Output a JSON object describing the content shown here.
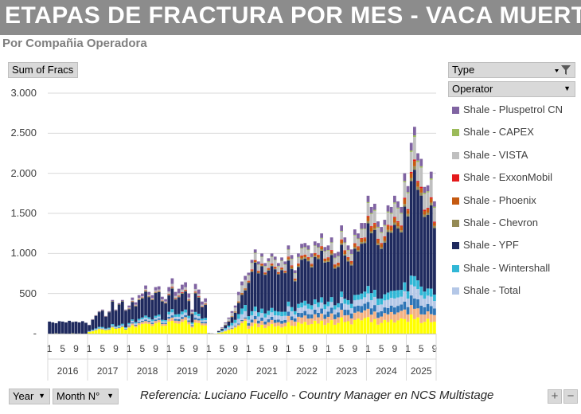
{
  "header": {
    "title": "ETAPAS DE FRACTURA POR MES -  VACA MUERTA",
    "subtitle": "Por Compañia Operadora"
  },
  "pivot": {
    "values_field": "Sum of Fracs",
    "legend_fields": [
      "Type",
      "Operator"
    ],
    "axis_fields": [
      "Year",
      "Month N°"
    ]
  },
  "reference": "Referencia:  Luciano Fucello - Country Manager en NCS Multistage",
  "buttons": {
    "plus": "+",
    "minus": "−"
  },
  "icons": {
    "filter": "filter-icon",
    "dropdown": "dropdown-arrow-icon"
  },
  "chart_data": {
    "type": "bar",
    "stacked": true,
    "title": "ETAPAS DE FRACTURA POR MES -  VACA MUERTA",
    "ylabel": "Sum of Fracs",
    "ylim": [
      0,
      3000
    ],
    "yticks": [
      "-",
      "500",
      "1.000",
      "1.500",
      "2.000",
      "2.500",
      "3.000"
    ],
    "years": [
      "2016",
      "2017",
      "2018",
      "2019",
      "2020",
      "2021",
      "2022",
      "2023",
      "2024",
      "2025"
    ],
    "month_tick_labels": [
      "1",
      "5",
      "9"
    ],
    "legend_position": "right",
    "grid": true,
    "series": [
      {
        "name": "Shale - Pluspetrol CN",
        "color": "#8064a2"
      },
      {
        "name": "Shale - CAPEX",
        "color": "#9bbb59"
      },
      {
        "name": "Shale - VISTA",
        "color": "#bfbfbf"
      },
      {
        "name": "Shale - ExxonMobil",
        "color": "#e41a1c"
      },
      {
        "name": "Shale - Phoenix",
        "color": "#c55a11"
      },
      {
        "name": "Shale - Chevron",
        "color": "#948a54"
      },
      {
        "name": "Shale - YPF",
        "color": "#1f2a5e"
      },
      {
        "name": "Shale - Wintershall",
        "color": "#31b7d6"
      },
      {
        "name": "Shale - Total",
        "color": "#b4c7e7"
      }
    ],
    "monthly_totals": [
      [
        150,
        140,
        130,
        155,
        150,
        140,
        160,
        145,
        150,
        140,
        155,
        135
      ],
      [
        110,
        180,
        230,
        280,
        300,
        220,
        280,
        420,
        300,
        380,
        420,
        300
      ],
      [
        350,
        450,
        390,
        480,
        500,
        600,
        520,
        480,
        580,
        590,
        460,
        430
      ],
      [
        580,
        690,
        520,
        560,
        610,
        640,
        500,
        300,
        620,
        550,
        400,
        440
      ],
      [
        10,
        5,
        0,
        40,
        80,
        140,
        200,
        280,
        350,
        520,
        650,
        720
      ],
      [
        760,
        920,
        1050,
        900,
        1000,
        880,
        940,
        1000,
        960,
        880,
        950,
        900
      ],
      [
        1100,
        980,
        790,
        1000,
        1120,
        1130,
        1100,
        1000,
        1150,
        1130,
        1250,
        1080
      ],
      [
        1100,
        1200,
        1000,
        1020,
        1350,
        1200,
        1100,
        1050,
        1300,
        1250,
        1380,
        1380
      ],
      [
        1720,
        1580,
        1620,
        1400,
        1330,
        1420,
        1600,
        1580,
        1720,
        1650,
        1580,
        2000
      ],
      [
        1840,
        2380,
        2580,
        2250,
        2180,
        1830,
        1850,
        2020,
        1650
      ]
    ],
    "mix": [
      [
        0.0,
        0.0,
        0.0,
        0.0,
        0.0,
        0.0,
        1.0,
        0.0,
        0.0
      ],
      [
        0.04,
        0.0,
        0.0,
        0.0,
        0.0,
        0.02,
        0.86,
        0.05,
        0.03
      ],
      [
        0.1,
        0.0,
        0.04,
        0.01,
        0.0,
        0.03,
        0.7,
        0.06,
        0.06
      ],
      [
        0.15,
        0.0,
        0.08,
        0.02,
        0.0,
        0.03,
        0.55,
        0.09,
        0.08
      ],
      [
        0.1,
        0.0,
        0.2,
        0.0,
        0.03,
        0.02,
        0.35,
        0.15,
        0.15
      ],
      [
        0.05,
        0.01,
        0.1,
        0.01,
        0.02,
        0.01,
        0.66,
        0.07,
        0.07
      ],
      [
        0.06,
        0.01,
        0.1,
        0.01,
        0.03,
        0.02,
        0.62,
        0.07,
        0.08
      ],
      [
        0.07,
        0.01,
        0.1,
        0.01,
        0.04,
        0.02,
        0.6,
        0.07,
        0.08
      ],
      [
        0.06,
        0.01,
        0.12,
        0.01,
        0.04,
        0.02,
        0.59,
        0.07,
        0.08
      ],
      [
        0.05,
        0.01,
        0.13,
        0.01,
        0.03,
        0.02,
        0.62,
        0.06,
        0.07
      ]
    ],
    "other_operators": [
      {
        "color": "#ffff00",
        "share": [
          0.0,
          0.18,
          0.22,
          0.24,
          0.2,
          0.1,
          0.12,
          0.13,
          0.1,
          0.08
        ]
      },
      {
        "color": "#f4b183",
        "share": [
          0.0,
          0.02,
          0.05,
          0.06,
          0.04,
          0.05,
          0.07,
          0.07,
          0.06,
          0.05
        ]
      },
      {
        "color": "#2e75b6",
        "share": [
          0.0,
          0.02,
          0.03,
          0.04,
          0.02,
          0.04,
          0.05,
          0.06,
          0.05,
          0.05
        ]
      }
    ]
  }
}
